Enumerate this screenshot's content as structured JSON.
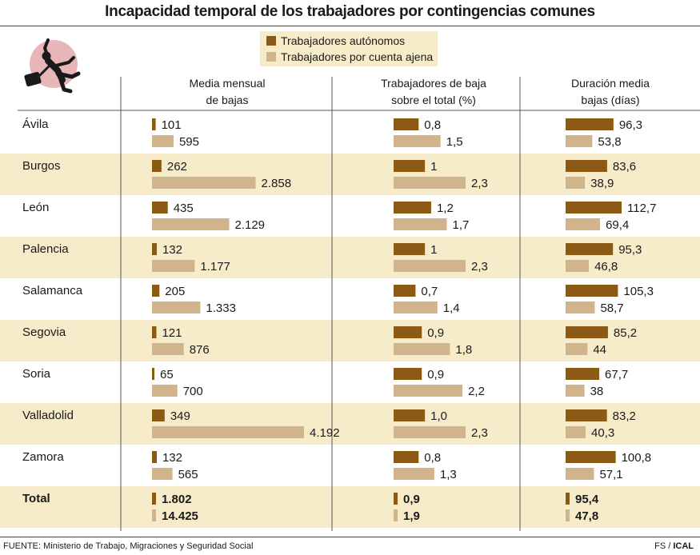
{
  "chart_data": {
    "type": "bar",
    "title": "Incapacidad temporal de los trabajadores por contingencias comunes",
    "legend": {
      "placement": "top-center"
    },
    "series": [
      {
        "name": "Trabajadores autónomos",
        "color": "#8b5a14"
      },
      {
        "name": "Trabajadores por cuenta ajena",
        "color": "#d2b48c"
      }
    ],
    "columns": [
      {
        "header_line1": "Media mensual",
        "header_line2": "de bajas",
        "xlim": [
          0,
          4192
        ]
      },
      {
        "header_line1": "Trabajadores de baja",
        "header_line2": "sobre el total (%)",
        "xlim": [
          0,
          2.3
        ]
      },
      {
        "header_line1": "Duración media",
        "header_line2": "bajas (días)",
        "xlim": [
          0,
          112.7
        ]
      }
    ],
    "rows": [
      {
        "province": "Ávila",
        "media_mensual": {
          "autonomos": 101,
          "ajena": 595,
          "autonomos_label": "101",
          "ajena_label": "595"
        },
        "porcentaje": {
          "autonomos": 0.8,
          "ajena": 1.5,
          "autonomos_label": "0,8",
          "ajena_label": "1,5"
        },
        "duracion": {
          "autonomos": 96.3,
          "ajena": 53.8,
          "autonomos_label": "96,3",
          "ajena_label": "53,8"
        }
      },
      {
        "province": "Burgos",
        "media_mensual": {
          "autonomos": 262,
          "ajena": 2858,
          "autonomos_label": "262",
          "ajena_label": "2.858"
        },
        "porcentaje": {
          "autonomos": 1,
          "ajena": 2.3,
          "autonomos_label": "1",
          "ajena_label": "2,3"
        },
        "duracion": {
          "autonomos": 83.6,
          "ajena": 38.9,
          "autonomos_label": "83,6",
          "ajena_label": "38,9"
        }
      },
      {
        "province": "León",
        "media_mensual": {
          "autonomos": 435,
          "ajena": 2129,
          "autonomos_label": "435",
          "ajena_label": "2.129"
        },
        "porcentaje": {
          "autonomos": 1.2,
          "ajena": 1.7,
          "autonomos_label": "1,2",
          "ajena_label": "1,7"
        },
        "duracion": {
          "autonomos": 112.7,
          "ajena": 69.4,
          "autonomos_label": "112,7",
          "ajena_label": "69,4"
        }
      },
      {
        "province": "Palencia",
        "media_mensual": {
          "autonomos": 132,
          "ajena": 1177,
          "autonomos_label": "132",
          "ajena_label": "1.177"
        },
        "porcentaje": {
          "autonomos": 1,
          "ajena": 2.3,
          "autonomos_label": "1",
          "ajena_label": "2,3"
        },
        "duracion": {
          "autonomos": 95.3,
          "ajena": 46.8,
          "autonomos_label": "95,3",
          "ajena_label": "46,8"
        }
      },
      {
        "province": "Salamanca",
        "media_mensual": {
          "autonomos": 205,
          "ajena": 1333,
          "autonomos_label": "205",
          "ajena_label": "1.333"
        },
        "porcentaje": {
          "autonomos": 0.7,
          "ajena": 1.4,
          "autonomos_label": "0,7",
          "ajena_label": "1,4"
        },
        "duracion": {
          "autonomos": 105.3,
          "ajena": 58.7,
          "autonomos_label": "105,3",
          "ajena_label": "58,7"
        }
      },
      {
        "province": "Segovia",
        "media_mensual": {
          "autonomos": 121,
          "ajena": 876,
          "autonomos_label": "121",
          "ajena_label": "876"
        },
        "porcentaje": {
          "autonomos": 0.9,
          "ajena": 1.8,
          "autonomos_label": "0,9",
          "ajena_label": "1,8"
        },
        "duracion": {
          "autonomos": 85.2,
          "ajena": 44,
          "autonomos_label": "85,2",
          "ajena_label": "44"
        }
      },
      {
        "province": "Soria",
        "media_mensual": {
          "autonomos": 65,
          "ajena": 700,
          "autonomos_label": "65",
          "ajena_label": "700"
        },
        "porcentaje": {
          "autonomos": 0.9,
          "ajena": 2.2,
          "autonomos_label": "0,9",
          "ajena_label": "2,2"
        },
        "duracion": {
          "autonomos": 67.7,
          "ajena": 38,
          "autonomos_label": "67,7",
          "ajena_label": "38"
        }
      },
      {
        "province": "Valladolid",
        "media_mensual": {
          "autonomos": 349,
          "ajena": 4192,
          "autonomos_label": "349",
          "ajena_label": "4.192"
        },
        "porcentaje": {
          "autonomos": 1.0,
          "ajena": 2.3,
          "autonomos_label": "1,0",
          "ajena_label": "2,3"
        },
        "duracion": {
          "autonomos": 83.2,
          "ajena": 40.3,
          "autonomos_label": "83,2",
          "ajena_label": "40,3"
        }
      },
      {
        "province": "Zamora",
        "media_mensual": {
          "autonomos": 132,
          "ajena": 565,
          "autonomos_label": "132",
          "ajena_label": "565"
        },
        "porcentaje": {
          "autonomos": 0.8,
          "ajena": 1.3,
          "autonomos_label": "0,8",
          "ajena_label": "1,3"
        },
        "duracion": {
          "autonomos": 100.8,
          "ajena": 57.1,
          "autonomos_label": "100,8",
          "ajena_label": "57,1"
        }
      }
    ],
    "total": {
      "province": "Total",
      "media_mensual": {
        "autonomos": 1802,
        "ajena": 14425,
        "autonomos_label": "1.802",
        "ajena_label": "14.425"
      },
      "porcentaje": {
        "autonomos": 0.9,
        "ajena": 1.9,
        "autonomos_label": "0,9",
        "ajena_label": "1,9"
      },
      "duracion": {
        "autonomos": 95.4,
        "ajena": 47.8,
        "autonomos_label": "95,4",
        "ajena_label": "47,8"
      }
    },
    "stripe_color": "#f6ecc9"
  },
  "footer": {
    "source": "FUENTE: Ministerio de Trabajo, Migraciones y Seguridad Social",
    "credit_prefix": "FS / ",
    "credit_brand": "ICAL"
  },
  "icon": "falling-worker-icon"
}
